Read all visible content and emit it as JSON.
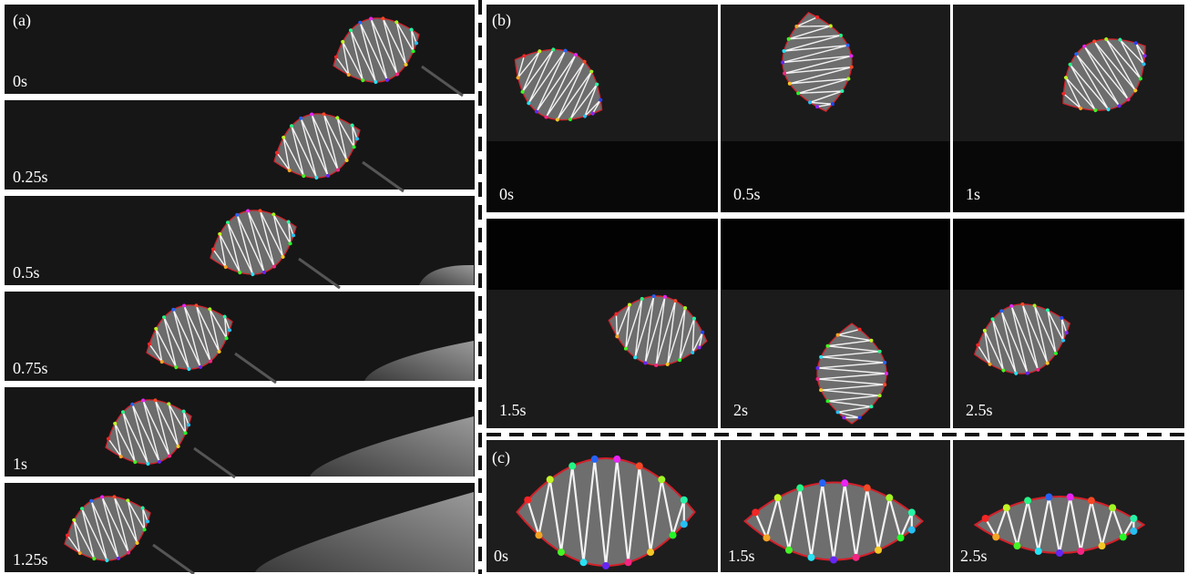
{
  "panels": [
    {
      "label": "(a)",
      "frames": [
        "0s",
        "0.25s",
        "0.5s",
        "0.75s",
        "1s",
        "1.25s"
      ]
    },
    {
      "label": "(b)",
      "frames": [
        "0s",
        "0.5s",
        "1s",
        "1.5s",
        "2s",
        "2.5s"
      ]
    },
    {
      "label": "(c)",
      "frames": [
        "0s",
        "1.5s",
        "2.5s"
      ]
    }
  ]
}
